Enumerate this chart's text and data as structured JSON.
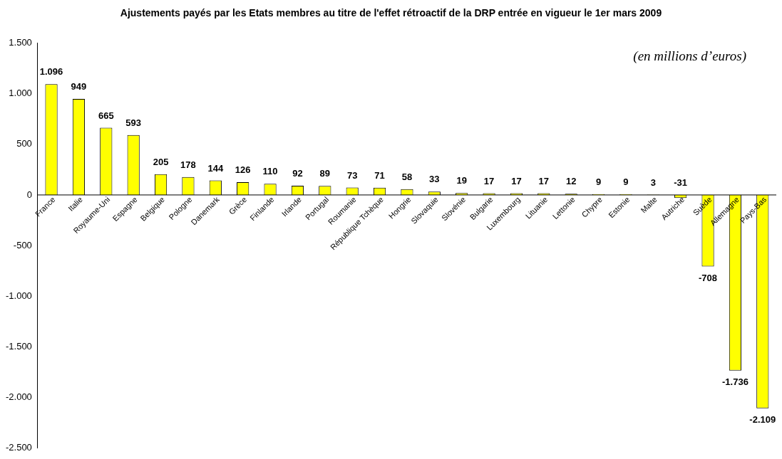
{
  "chart_data": {
    "type": "bar",
    "title": "Ajustements payés par les Etats membres au titre de l'effet rétroactif de la DRP entrée en vigueur le 1er mars 2009",
    "categories": [
      "France",
      "Italie",
      "Royaume-Uni",
      "Espagne",
      "Belgique",
      "Pologne",
      "Danemark",
      "Grèce",
      "Finlande",
      "Irlande",
      "Portugal",
      "Roumanie",
      "République Tchèque",
      "Hongrie",
      "Slovaquie",
      "Slovénie",
      "Bulgarie",
      "Luxembourg",
      "Lituanie",
      "Lettonie",
      "Chypre",
      "Estonie",
      "Malte",
      "Autriche",
      "Suède",
      "Allemagne",
      "Pays-Bas"
    ],
    "values": [
      1096,
      949,
      665,
      593,
      205,
      178,
      144,
      126,
      110,
      92,
      89,
      73,
      71,
      58,
      33,
      19,
      17,
      17,
      17,
      12,
      9,
      9,
      3,
      -31,
      -708,
      -1736,
      -2109
    ],
    "value_labels": [
      "1.096",
      "949",
      "665",
      "593",
      "205",
      "178",
      "144",
      "126",
      "110",
      "92",
      "89",
      "73",
      "71",
      "58",
      "33",
      "19",
      "17",
      "17",
      "17",
      "12",
      "9",
      "9",
      "3",
      "-31",
      "-708",
      "-1.736",
      "-2.109"
    ],
    "color": "#ffff00",
    "ylim": [
      -2500,
      1500
    ],
    "yticks": [
      {
        "value": 1500,
        "label": "1.500"
      },
      {
        "value": 1000,
        "label": "1.000"
      },
      {
        "value": 500,
        "label": "500"
      },
      {
        "value": 0,
        "label": "0"
      },
      {
        "value": -500,
        "label": "-500"
      },
      {
        "value": -1000,
        "label": "-1.000"
      },
      {
        "value": -1500,
        "label": "-1.500"
      },
      {
        "value": -2000,
        "label": "-2.000"
      },
      {
        "value": -2500,
        "label": "-2.500"
      }
    ],
    "grid": false,
    "legend": false,
    "annotations": [
      "(en millions d’euros)"
    ]
  }
}
